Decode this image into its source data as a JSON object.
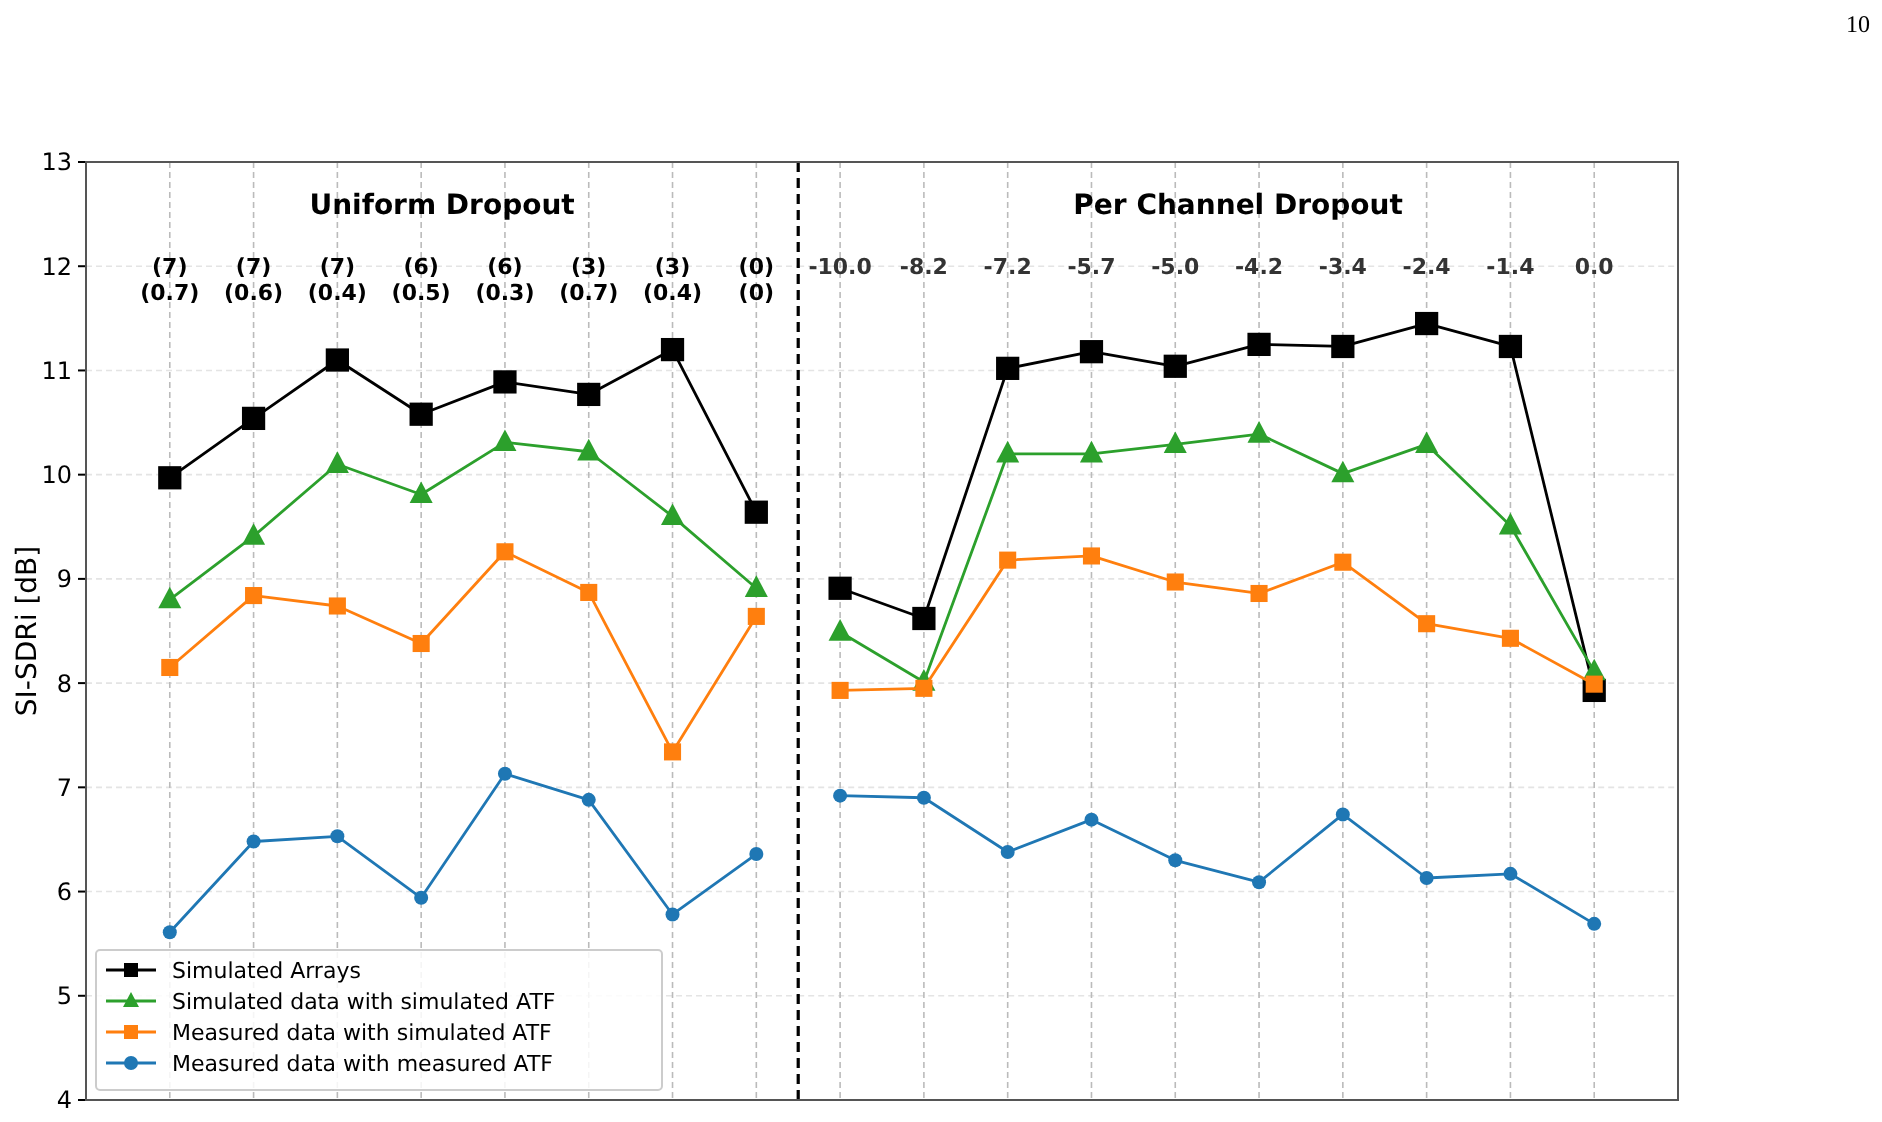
{
  "chart_data": [
    {
      "type": "line",
      "title": "Uniform Dropout",
      "ylabel": "SI-SDRi [dB]",
      "annotations": [
        "10"
      ],
      "categories": [
        "(7)\n(0.7)",
        "(7)\n(0.6)",
        "(7)\n(0.4)",
        "(6)\n(0.5)",
        "(6)\n(0.3)",
        "(3)\n(0.7)",
        "(3)\n(0.4)",
        "(0)\n(0)"
      ],
      "ylim": [
        4,
        13
      ],
      "yticks": [
        4,
        5,
        6,
        7,
        8,
        9,
        10,
        11,
        12,
        13
      ],
      "grid": true,
      "legend": "bottom left",
      "series": [
        {
          "name": "Simulated Arrays",
          "color": "#000000",
          "marker": "square",
          "values": [
            9.97,
            10.54,
            11.1,
            10.58,
            10.89,
            10.77,
            11.2,
            9.64
          ]
        },
        {
          "name": "Simulated data with simulated ATF",
          "color": "#2ca02c",
          "marker": "triangle",
          "values": [
            8.8,
            9.41,
            10.1,
            9.81,
            10.31,
            10.22,
            9.6,
            8.91
          ]
        },
        {
          "name": "Measured data with simulated ATF",
          "color": "#ff7f0e",
          "marker": "square",
          "values": [
            8.15,
            8.84,
            8.74,
            8.38,
            9.26,
            8.87,
            7.34,
            8.64
          ]
        },
        {
          "name": "Measured data with measured ATF",
          "color": "#1f77b4",
          "marker": "circle",
          "values": [
            5.61,
            6.48,
            6.53,
            5.94,
            7.13,
            6.88,
            5.78,
            6.36
          ]
        }
      ]
    },
    {
      "type": "line",
      "title": "Per Channel Dropout",
      "categories": [
        "-10.0",
        "-8.2",
        "-7.2",
        "-5.7",
        "-5.0",
        "-4.2",
        "-3.4",
        "-2.4",
        "-1.4",
        "0.0"
      ],
      "ylim": [
        4,
        13
      ],
      "yticks": [
        4,
        5,
        6,
        7,
        8,
        9,
        10,
        11,
        12,
        13
      ],
      "grid": true,
      "tick_labels": "x",
      "series": [
        {
          "color": "#000000",
          "marker": "square",
          "values": [
            8.91,
            8.62,
            11.02,
            11.18,
            11.04,
            11.25,
            11.23,
            11.45,
            11.23,
            7.93
          ]
        },
        {
          "color": "#2ca02c",
          "marker": "triangle",
          "values": [
            8.49,
            8.01,
            10.2,
            10.2,
            10.29,
            10.39,
            10.01,
            10.29,
            9.51,
            8.11
          ]
        },
        {
          "color": "#ff7f0e",
          "marker": "square",
          "values": [
            7.93,
            7.95,
            9.18,
            9.22,
            8.97,
            8.86,
            9.16,
            8.57,
            8.43,
            7.99
          ]
        },
        {
          "color": "#1f77b4",
          "marker": "circle",
          "values": [
            6.92,
            6.9,
            6.38,
            6.69,
            6.3,
            6.09,
            6.74,
            6.13,
            6.17,
            5.69
          ]
        }
      ]
    }
  ]
}
